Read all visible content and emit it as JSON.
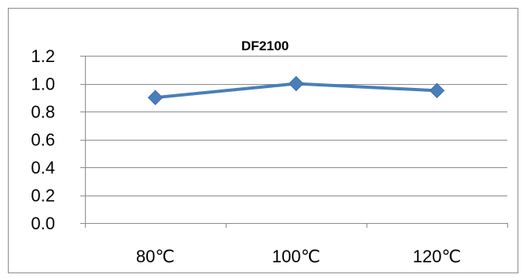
{
  "chart_data": {
    "type": "line",
    "title": "DF2100",
    "categories": [
      "80℃",
      "100℃",
      "120℃"
    ],
    "series": [
      {
        "values": [
          0.9,
          1.0,
          0.95
        ]
      }
    ],
    "ylim": [
      0.0,
      1.2
    ],
    "yticks": [
      "0.0",
      "0.2",
      "0.4",
      "0.6",
      "0.8",
      "1.0",
      "1.2"
    ],
    "ytick_values": [
      0.0,
      0.2,
      0.4,
      0.6,
      0.8,
      1.0,
      1.2
    ],
    "grid": true,
    "legend": "none",
    "marker": "diamond",
    "colors": {
      "series": "#4a7ebb",
      "grid": "#8c8c8c"
    }
  }
}
